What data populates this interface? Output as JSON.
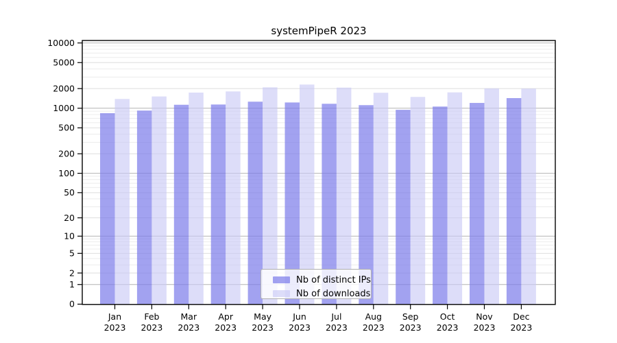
{
  "chart_data": {
    "type": "bar",
    "title": "systemPipeR 2023",
    "year_label": "2023",
    "categories": [
      "Jan",
      "Feb",
      "Mar",
      "Apr",
      "May",
      "Jun",
      "Jul",
      "Aug",
      "Sep",
      "Oct",
      "Nov",
      "Dec"
    ],
    "series": [
      {
        "name": "Nb of distinct IPs",
        "color": "#7b7bea",
        "alpha": 0.7,
        "values": [
          840,
          920,
          1130,
          1140,
          1260,
          1225,
          1170,
          1115,
          945,
          1060,
          1205,
          1430
        ]
      },
      {
        "name": "Nb of downloads",
        "color": "#c8c8f6",
        "alpha": 0.62,
        "values": [
          1385,
          1515,
          1735,
          1810,
          2090,
          2305,
          2070,
          1725,
          1490,
          1750,
          2010,
          1995
        ]
      }
    ],
    "yticks": [
      0,
      1,
      2,
      5,
      10,
      20,
      50,
      100,
      200,
      500,
      1000,
      2000,
      5000,
      10000
    ],
    "ylim": [
      0,
      10800
    ],
    "scale": "log1p",
    "grid": true,
    "legend_position": "lower center"
  }
}
